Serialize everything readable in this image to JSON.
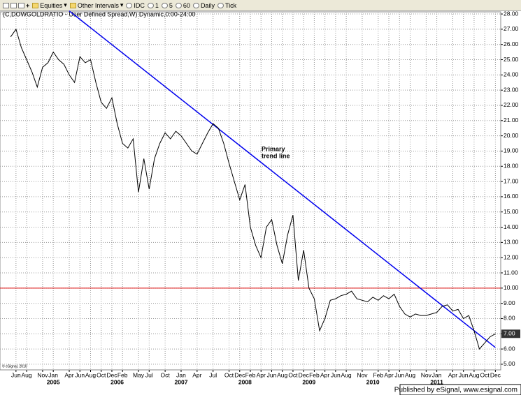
{
  "chart_data": {
    "type": "line",
    "title": "(C,DOWGOLDRATIO - User Defined Spread,W) Dynamic,0:00-24:00",
    "copyright": "© eSignal, 2010",
    "annotation": [
      "Primary",
      "trend line"
    ],
    "color": "#000000",
    "x": [
      "2004-05",
      "2004-06",
      "2004-07",
      "2004-08",
      "2004-09",
      "2004-10",
      "2004-11",
      "2004-12",
      "2005-01",
      "2005-02",
      "2005-03",
      "2005-04",
      "2005-05",
      "2005-06",
      "2005-07",
      "2005-08",
      "2005-09",
      "2005-10",
      "2005-11",
      "2005-12",
      "2006-01",
      "2006-02",
      "2006-03",
      "2006-04",
      "2006-05",
      "2006-06",
      "2006-07",
      "2006-08",
      "2006-09",
      "2006-10",
      "2006-11",
      "2006-12",
      "2007-01",
      "2007-02",
      "2007-03",
      "2007-04",
      "2007-05",
      "2007-06",
      "2007-07",
      "2007-08",
      "2007-09",
      "2007-10",
      "2007-11",
      "2007-12",
      "2008-01",
      "2008-02",
      "2008-03",
      "2008-04",
      "2008-05",
      "2008-06",
      "2008-07",
      "2008-08",
      "2008-09",
      "2008-10",
      "2008-11",
      "2008-12",
      "2009-01",
      "2009-02",
      "2009-03",
      "2009-04",
      "2009-05",
      "2009-06",
      "2009-07",
      "2009-08",
      "2009-09",
      "2009-10",
      "2009-11",
      "2009-12",
      "2010-01",
      "2010-02",
      "2010-03",
      "2010-04",
      "2010-05",
      "2010-06",
      "2010-07",
      "2010-08",
      "2010-09",
      "2010-10",
      "2010-11",
      "2010-12",
      "2011-01",
      "2011-02",
      "2011-03",
      "2011-04",
      "2011-05",
      "2011-06",
      "2011-07",
      "2011-08",
      "2011-09",
      "2011-10",
      "2011-11",
      "2011-12"
    ],
    "values": [
      26.5,
      27.0,
      25.8,
      25.0,
      24.2,
      23.2,
      24.5,
      24.8,
      25.5,
      25.0,
      24.7,
      24.0,
      23.5,
      25.2,
      24.8,
      25.0,
      23.5,
      22.2,
      21.8,
      22.5,
      20.8,
      19.5,
      19.2,
      19.8,
      16.3,
      18.5,
      16.5,
      18.5,
      19.5,
      20.2,
      19.8,
      20.3,
      20.0,
      19.5,
      19.0,
      18.8,
      19.5,
      20.2,
      20.8,
      20.5,
      19.5,
      18.2,
      17.0,
      15.8,
      16.8,
      14.0,
      12.8,
      12.0,
      14.0,
      14.5,
      12.8,
      11.6,
      13.5,
      14.8,
      10.5,
      12.5,
      10.0,
      9.3,
      7.2,
      8.0,
      9.2,
      9.3,
      9.5,
      9.6,
      9.8,
      9.3,
      9.2,
      9.1,
      9.4,
      9.2,
      9.5,
      9.3,
      9.6,
      8.8,
      8.3,
      8.1,
      8.3,
      8.2,
      8.2,
      8.3,
      8.4,
      8.8,
      8.9,
      8.5,
      8.6,
      8.0,
      8.2,
      7.2,
      6.0,
      6.4,
      6.8,
      7.0
    ],
    "last_value_label": "7.00",
    "trend_line": {
      "x": [
        "2005-04",
        "2011-12"
      ],
      "values": [
        28.2,
        6.1
      ],
      "color": "#0000ee"
    },
    "hline": {
      "value": 10,
      "color": "#dd0000"
    },
    "xlim": [
      "2004-03",
      "2012-01"
    ],
    "ylim": [
      4.63,
      28.14
    ],
    "xticks": [
      {
        "value": "2004-06",
        "label": "Jun"
      },
      {
        "value": "2004-08",
        "label": "Aug"
      },
      {
        "value": "2004-11",
        "label": "Nov"
      },
      {
        "value": "2005-01",
        "label": "Jan"
      },
      {
        "value": "2005-04",
        "label": "Apr"
      },
      {
        "value": "2005-06",
        "label": "Jun"
      },
      {
        "value": "2005-08",
        "label": "Aug"
      },
      {
        "value": "2005-10",
        "label": "Oct"
      },
      {
        "value": "2005-12",
        "label": "Dec"
      },
      {
        "value": "2006-02",
        "label": "Feb"
      },
      {
        "value": "2006-05",
        "label": "May"
      },
      {
        "value": "2006-07",
        "label": "Jul"
      },
      {
        "value": "2006-10",
        "label": "Oct"
      },
      {
        "value": "2007-01",
        "label": "Jan"
      },
      {
        "value": "2007-04",
        "label": "Apr"
      },
      {
        "value": "2007-07",
        "label": "Jul"
      },
      {
        "value": "2007-10",
        "label": "Oct"
      },
      {
        "value": "2007-12",
        "label": "Dec"
      },
      {
        "value": "2008-02",
        "label": "Feb"
      },
      {
        "value": "2008-04",
        "label": "Apr"
      },
      {
        "value": "2008-06",
        "label": "Jun"
      },
      {
        "value": "2008-08",
        "label": "Aug"
      },
      {
        "value": "2008-10",
        "label": "Oct"
      },
      {
        "value": "2008-12",
        "label": "Dec"
      },
      {
        "value": "2009-02",
        "label": "Feb"
      },
      {
        "value": "2009-04",
        "label": "Apr"
      },
      {
        "value": "2009-06",
        "label": "Jun"
      },
      {
        "value": "2009-08",
        "label": "Aug"
      },
      {
        "value": "2009-11",
        "label": "Nov"
      },
      {
        "value": "2010-02",
        "label": "Feb"
      },
      {
        "value": "2010-04",
        "label": "Apr"
      },
      {
        "value": "2010-06",
        "label": "Jun"
      },
      {
        "value": "2010-08",
        "label": "Aug"
      },
      {
        "value": "2010-11",
        "label": "Nov"
      },
      {
        "value": "2011-01",
        "label": "Jan"
      },
      {
        "value": "2011-04",
        "label": "Apr"
      },
      {
        "value": "2011-06",
        "label": "Jun"
      },
      {
        "value": "2011-08",
        "label": "Aug"
      },
      {
        "value": "2011-10",
        "label": "Oct"
      },
      {
        "value": "2011-12",
        "label": "Dec"
      }
    ],
    "year_ticks": [
      {
        "value": "2005-01",
        "label": "2005"
      },
      {
        "value": "2006-01",
        "label": "2006"
      },
      {
        "value": "2007-01",
        "label": "2007"
      },
      {
        "value": "2008-01",
        "label": "2008"
      },
      {
        "value": "2009-01",
        "label": "2009"
      },
      {
        "value": "2010-01",
        "label": "2010"
      },
      {
        "value": "2011-01",
        "label": "2011"
      }
    ],
    "yticks": [
      {
        "value": 5,
        "label": "5.00"
      },
      {
        "value": 6,
        "label": "6.00"
      },
      {
        "value": 7,
        "label": "7.00"
      },
      {
        "value": 8,
        "label": "8.00"
      },
      {
        "value": 9,
        "label": "9.00"
      },
      {
        "value": 10,
        "label": "10.00"
      },
      {
        "value": 11,
        "label": "11.00"
      },
      {
        "value": 12,
        "label": "12.00"
      },
      {
        "value": 13,
        "label": "13.00"
      },
      {
        "value": 14,
        "label": "14.00"
      },
      {
        "value": 15,
        "label": "15.00"
      },
      {
        "value": 16,
        "label": "16.00"
      },
      {
        "value": 17,
        "label": "17.00"
      },
      {
        "value": 18,
        "label": "18.00"
      },
      {
        "value": 19,
        "label": "19.00"
      },
      {
        "value": 20,
        "label": "20.00"
      },
      {
        "value": 21,
        "label": "21.00"
      },
      {
        "value": 22,
        "label": "22.00"
      },
      {
        "value": 23,
        "label": "23.00"
      },
      {
        "value": 24,
        "label": "24.00"
      },
      {
        "value": 25,
        "label": "25.00"
      },
      {
        "value": 26,
        "label": "26.00"
      },
      {
        "value": 27,
        "label": "27.00"
      },
      {
        "value": 28,
        "label": "28.00"
      }
    ],
    "grid": true
  },
  "toolbar": [
    "Equities",
    "Other Intervals",
    "IDC",
    "1",
    "5",
    "60",
    "Daily",
    "Tick"
  ],
  "footer": "Published by eSignal, www.esignal.com"
}
